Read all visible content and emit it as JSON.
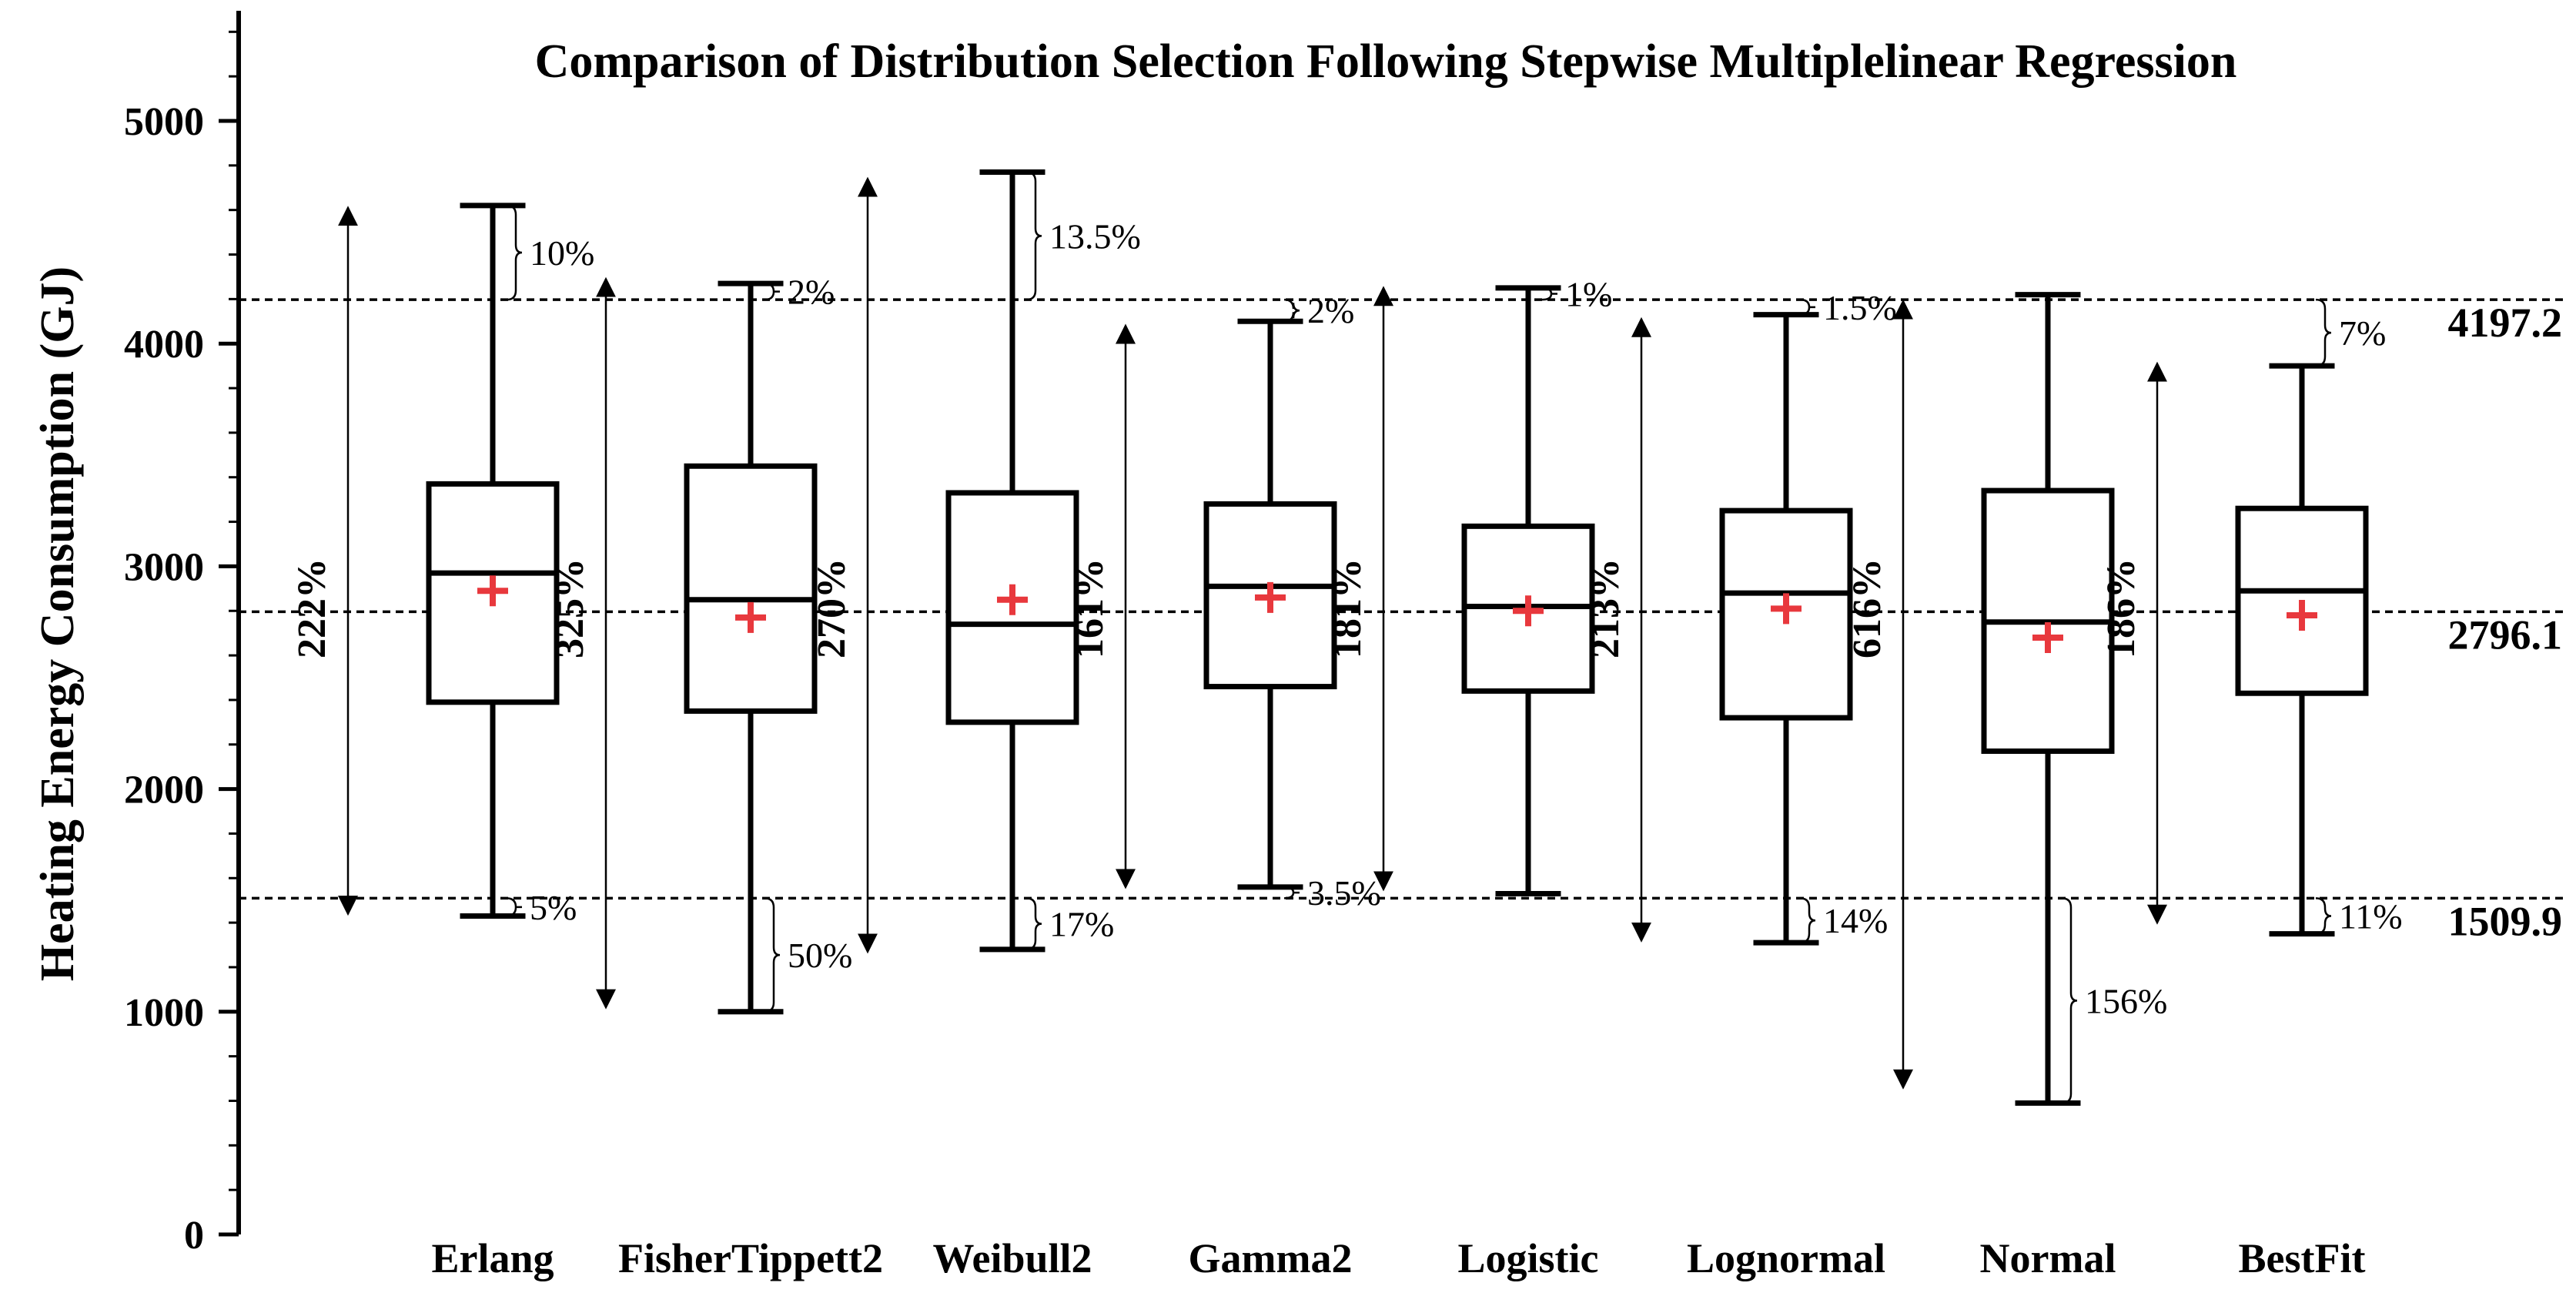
{
  "chart_data": {
    "type": "boxplot",
    "title": "Comparison of Distribution Selection Following Stepwise Multiplelinear Regression",
    "ylabel": "Heating Energy Consumption (GJ)",
    "xlabel": "",
    "ylim": [
      0,
      5400
    ],
    "yticks": [
      0,
      1000,
      2000,
      3000,
      4000,
      5000
    ],
    "y_minor_step": 200,
    "reference_lines": [
      {
        "value": 4197.2,
        "label": "4197.2"
      },
      {
        "value": 2796.1,
        "label": "2796.1"
      },
      {
        "value": 1509.9,
        "label": "1509.9"
      }
    ],
    "colors": {
      "box": "#000000",
      "mean_marker": "#e8383d",
      "reference_line": "#000000"
    },
    "categories": [
      "Erlang",
      "FisherTippett2",
      "Weibull2",
      "Gamma2",
      "Logistic",
      "Lognormal",
      "Normal",
      "BestFit"
    ],
    "boxes": [
      {
        "name": "Erlang",
        "whisker_low": 1430,
        "q1": 2390,
        "median": 2970,
        "q3": 3370,
        "whisker_high": 4620,
        "mean": 2890,
        "range_arrow": [
          1440,
          4610
        ],
        "range_label": "222%",
        "upper_dev_label": "10%",
        "lower_dev_label": "5%"
      },
      {
        "name": "FisherTippett2",
        "whisker_low": 1000,
        "q1": 2350,
        "median": 2850,
        "q3": 3450,
        "whisker_high": 4270,
        "mean": 2770,
        "range_arrow": [
          1020,
          4290
        ],
        "range_label": "325%",
        "upper_dev_label": "2%",
        "lower_dev_label": "50%"
      },
      {
        "name": "Weibull2",
        "whisker_low": 1280,
        "q1": 2300,
        "median": 2740,
        "q3": 3330,
        "whisker_high": 4770,
        "mean": 2850,
        "range_arrow": [
          1270,
          4740
        ],
        "range_label": "270%",
        "upper_dev_label": "13.5%",
        "lower_dev_label": "17%"
      },
      {
        "name": "Gamma2",
        "whisker_low": 1560,
        "q1": 2460,
        "median": 2910,
        "q3": 3280,
        "whisker_high": 4100,
        "mean": 2860,
        "range_arrow": [
          1560,
          4080
        ],
        "range_label": "161%",
        "upper_dev_label": "2%",
        "lower_dev_label": "3.5%"
      },
      {
        "name": "Logistic",
        "whisker_low": 1530,
        "q1": 2440,
        "median": 2820,
        "q3": 3180,
        "whisker_high": 4250,
        "mean": 2800,
        "range_arrow": [
          1550,
          4250
        ],
        "range_label": "181%",
        "upper_dev_label": "1%",
        "lower_dev_label": ""
      },
      {
        "name": "Lognormal",
        "whisker_low": 1310,
        "q1": 2320,
        "median": 2880,
        "q3": 3250,
        "whisker_high": 4130,
        "mean": 2810,
        "range_arrow": [
          1320,
          4110
        ],
        "range_label": "213%",
        "upper_dev_label": "1.5%",
        "lower_dev_label": "14%"
      },
      {
        "name": "Normal",
        "whisker_low": 590,
        "q1": 2170,
        "median": 2750,
        "q3": 3340,
        "whisker_high": 4220,
        "mean": 2680,
        "range_arrow": [
          660,
          4190
        ],
        "range_label": "616%",
        "upper_dev_label": "",
        "lower_dev_label": "156%"
      },
      {
        "name": "BestFit",
        "whisker_low": 1350,
        "q1": 2430,
        "median": 2890,
        "q3": 3260,
        "whisker_high": 3900,
        "mean": 2780,
        "range_arrow": [
          1400,
          3910
        ],
        "range_label": "186%",
        "upper_dev_label": "7%",
        "lower_dev_label": "11%"
      }
    ]
  }
}
